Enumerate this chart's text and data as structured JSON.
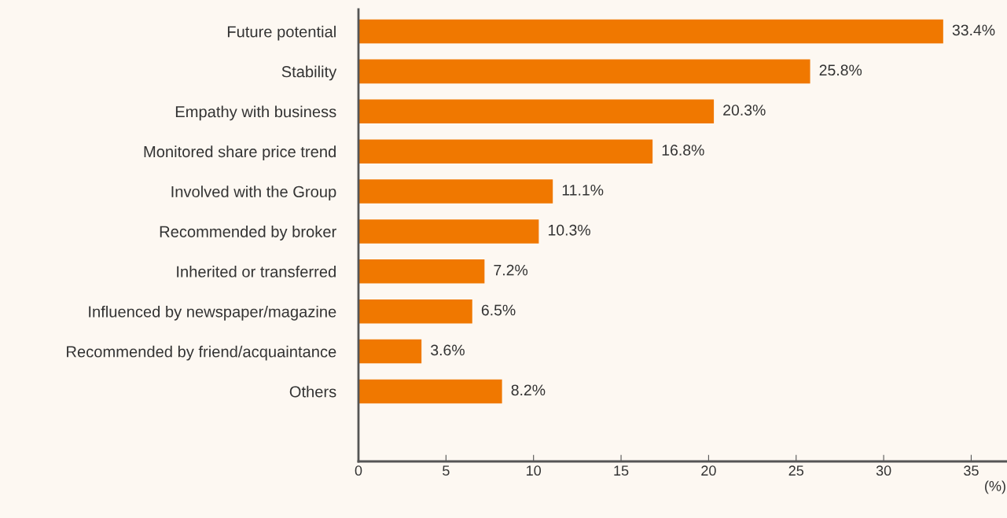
{
  "chart_data": {
    "type": "bar",
    "orientation": "horizontal",
    "xlabel": "(%)",
    "categories": [
      "Future potential",
      "Stability",
      "Empathy with business",
      "Monitored share price trend",
      "Involved with the Group",
      "Recommended by broker",
      "Inherited or transferred",
      "Influenced by newspaper/magazine",
      "Recommended by friend/acquaintance",
      "Others"
    ],
    "values": [
      33.4,
      25.8,
      20.3,
      16.8,
      11.1,
      10.3,
      7.2,
      6.5,
      3.6,
      8.2
    ],
    "value_labels": [
      "33.4%",
      "25.8%",
      "20.3%",
      "16.8%",
      "11.1%",
      "10.3%",
      "7.2%",
      "6.5%",
      "3.6%",
      "8.2%"
    ],
    "color": "#f07800",
    "xlim": [
      0,
      37
    ],
    "xticks": [
      0,
      5,
      10,
      15,
      20,
      25,
      30,
      35
    ],
    "grid": false,
    "legend": false
  }
}
